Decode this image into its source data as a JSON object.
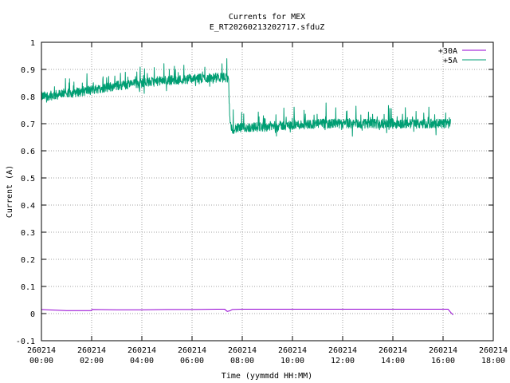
{
  "chart_data": {
    "type": "line",
    "title": "Currents for MEX",
    "subtitle": "E_RT20260213202717.sfduZ",
    "xlabel": "Time (yymmdd HH:MM)",
    "ylabel": "Current (A)",
    "xlim_hours": [
      0,
      18
    ],
    "ylim": [
      -0.1,
      1.0
    ],
    "grid": true,
    "legend_position": "top-right",
    "x_ticks": [
      {
        "date": "260214",
        "time": "00:00",
        "hour": 0
      },
      {
        "date": "260214",
        "time": "02:00",
        "hour": 2
      },
      {
        "date": "260214",
        "time": "04:00",
        "hour": 4
      },
      {
        "date": "260214",
        "time": "06:00",
        "hour": 6
      },
      {
        "date": "260214",
        "time": "08:00",
        "hour": 8
      },
      {
        "date": "260214",
        "time": "10:00",
        "hour": 10
      },
      {
        "date": "260214",
        "time": "12:00",
        "hour": 12
      },
      {
        "date": "260214",
        "time": "14:00",
        "hour": 14
      },
      {
        "date": "260214",
        "time": "16:00",
        "hour": 16
      },
      {
        "date": "260214",
        "time": "18:00",
        "hour": 18
      }
    ],
    "y_ticks": [
      "-0.1",
      "0",
      "0.1",
      "0.2",
      "0.3",
      "0.4",
      "0.5",
      "0.6",
      "0.7",
      "0.8",
      "0.9",
      "1"
    ],
    "series": [
      {
        "name": "+30A",
        "color": "#9400d3",
        "x_hours": [
          0.0,
          0.5,
          1.0,
          1.5,
          1.99,
          2.01,
          3.0,
          4.0,
          5.0,
          6.0,
          7.0,
          7.3,
          7.4,
          7.5,
          7.6,
          8.0,
          9.0,
          10.0,
          11.0,
          12.0,
          13.0,
          14.0,
          15.0,
          16.0,
          16.2,
          16.3,
          16.4
        ],
        "values": [
          0.015,
          0.013,
          0.011,
          0.011,
          0.011,
          0.015,
          0.014,
          0.014,
          0.015,
          0.015,
          0.016,
          0.016,
          0.008,
          0.01,
          0.015,
          0.016,
          0.016,
          0.016,
          0.016,
          0.016,
          0.016,
          0.016,
          0.016,
          0.016,
          0.016,
          0.005,
          -0.005
        ]
      },
      {
        "name": "+5A",
        "color": "#009e73",
        "x_hours": [
          0.0,
          1.0,
          2.0,
          3.0,
          4.0,
          5.0,
          6.0,
          7.0,
          7.45,
          7.5,
          7.55,
          8.0,
          9.0,
          10.0,
          11.0,
          12.0,
          13.0,
          14.0,
          15.0,
          16.0,
          16.3
        ],
        "values": [
          0.8,
          0.81,
          0.825,
          0.84,
          0.85,
          0.86,
          0.865,
          0.87,
          0.87,
          0.72,
          0.68,
          0.685,
          0.69,
          0.695,
          0.7,
          0.7,
          0.7,
          0.7,
          0.7,
          0.7,
          0.7
        ]
      }
    ]
  }
}
